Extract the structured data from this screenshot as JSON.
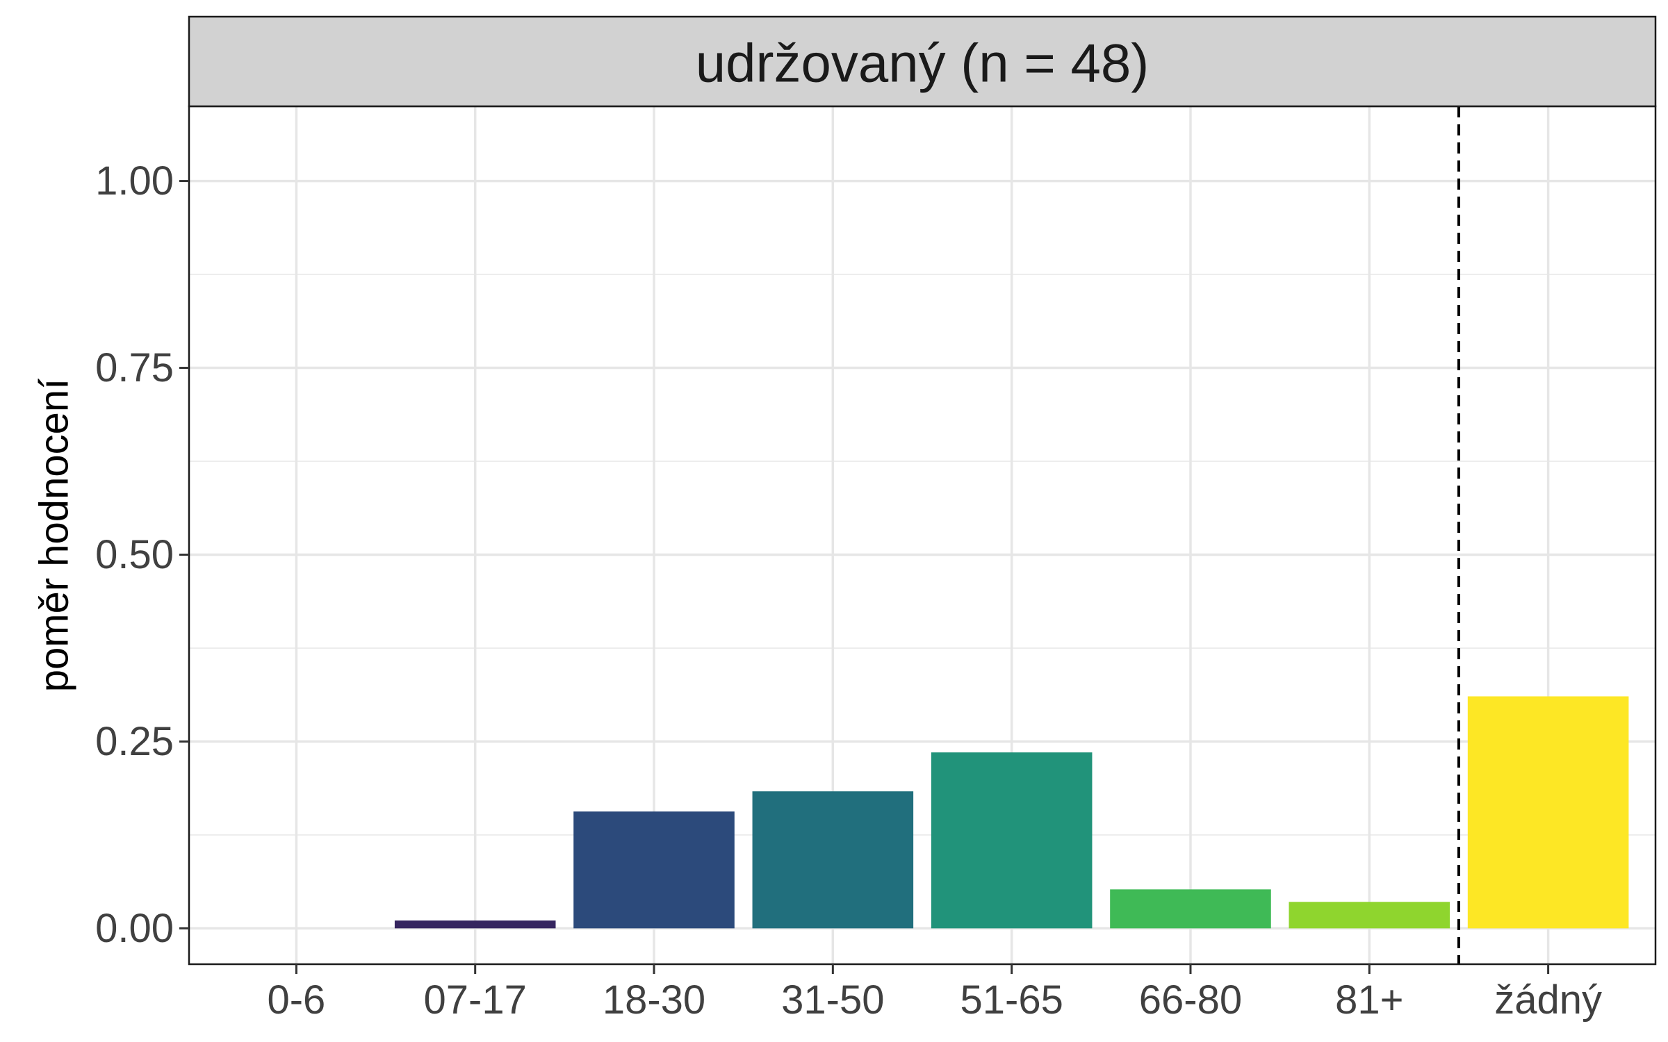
{
  "chart_data": {
    "type": "bar",
    "facet_title": "udržovaný (n = 48)",
    "ylabel": "poměr hodnocení",
    "xlabel": "",
    "categories": [
      "0-6",
      "07-17",
      "18-30",
      "31-50",
      "51-65",
      "66-80",
      "81+",
      "žádný"
    ],
    "values": [
      0.0,
      0.0104,
      0.1563,
      0.1833,
      0.2354,
      0.0521,
      0.0354,
      0.3104
    ],
    "colors": [
      "#440154",
      "#35255f",
      "#2c4a7b",
      "#216f7d",
      "#21937a",
      "#3fba56",
      "#8fd52e",
      "#fde725"
    ],
    "ylim": [
      -0.048,
      1.1
    ],
    "yticks": [
      0.0,
      0.25,
      0.5,
      0.75,
      1.0
    ],
    "ytick_labels": [
      "0.00",
      "0.25",
      "0.50",
      "0.75",
      "1.00"
    ],
    "minor_yticks": [
      0.125,
      0.375,
      0.625,
      0.875
    ],
    "divider_after_index": 6,
    "grid": true
  }
}
